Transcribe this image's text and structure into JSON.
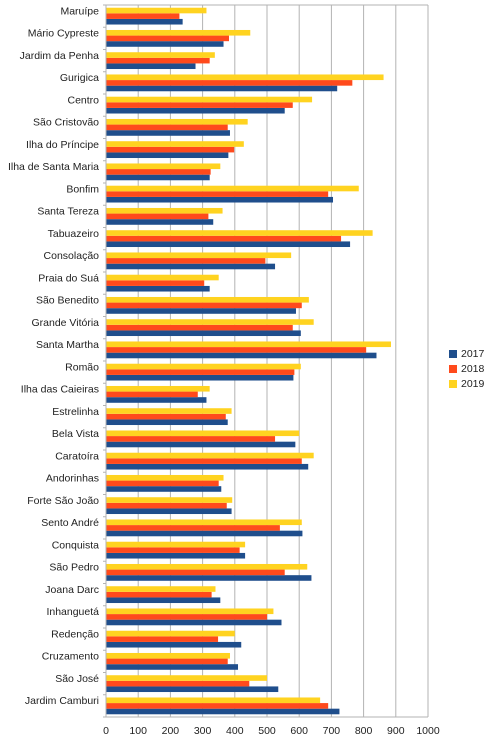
{
  "chart_data": {
    "type": "bar",
    "orientation": "horizontal",
    "categories": [
      "Maruípe",
      "Mário Cypreste",
      "Jardim da Penha",
      "Gurigica",
      "Centro",
      "São Cristovão",
      "Ilha do Príncipe",
      "Ilha de Santa Maria",
      "Bonfim",
      "Santa Tereza",
      "Tabuazeiro",
      "Consolação",
      "Praia do Suá",
      "São Benedito",
      "Grande Vitória",
      "Santa Martha",
      "Romão",
      "Ilha das Caieiras",
      "Estrelinha",
      "Bela Vista",
      "Caratoíra",
      "Andorinhas",
      "Forte São João",
      "Sento André",
      "Conquista",
      "São Pedro",
      "Joana Darc",
      "Inhanguetá",
      "Redenção",
      "Cruzamento",
      "São José",
      "Jardim Camburi"
    ],
    "series": [
      {
        "name": "2017",
        "color": "#1f4e8c",
        "values": [
          238,
          365,
          278,
          718,
          555,
          385,
          380,
          322,
          705,
          333,
          758,
          525,
          322,
          590,
          605,
          840,
          582,
          312,
          378,
          588,
          628,
          358,
          390,
          610,
          432,
          638,
          355,
          545,
          420,
          410,
          535,
          725
        ]
      },
      {
        "name": "2018",
        "color": "#ff4a1c",
        "values": [
          228,
          382,
          322,
          765,
          580,
          378,
          398,
          325,
          690,
          318,
          730,
          495,
          305,
          608,
          580,
          808,
          585,
          285,
          372,
          525,
          608,
          350,
          375,
          540,
          415,
          555,
          328,
          500,
          348,
          378,
          445,
          690
        ]
      },
      {
        "name": "2019",
        "color": "#ffd320",
        "values": [
          312,
          448,
          338,
          862,
          640,
          440,
          428,
          355,
          785,
          362,
          828,
          575,
          350,
          630,
          645,
          885,
          605,
          322,
          390,
          600,
          645,
          365,
          392,
          608,
          432,
          625,
          340,
          520,
          400,
          385,
          500,
          665
        ]
      }
    ],
    "xlim": [
      0,
      1000
    ],
    "xticks": [
      "0",
      "100",
      "200",
      "300",
      "400",
      "500",
      "600",
      "700",
      "800",
      "900",
      "1000"
    ],
    "grid": true,
    "legend_position": "right"
  }
}
